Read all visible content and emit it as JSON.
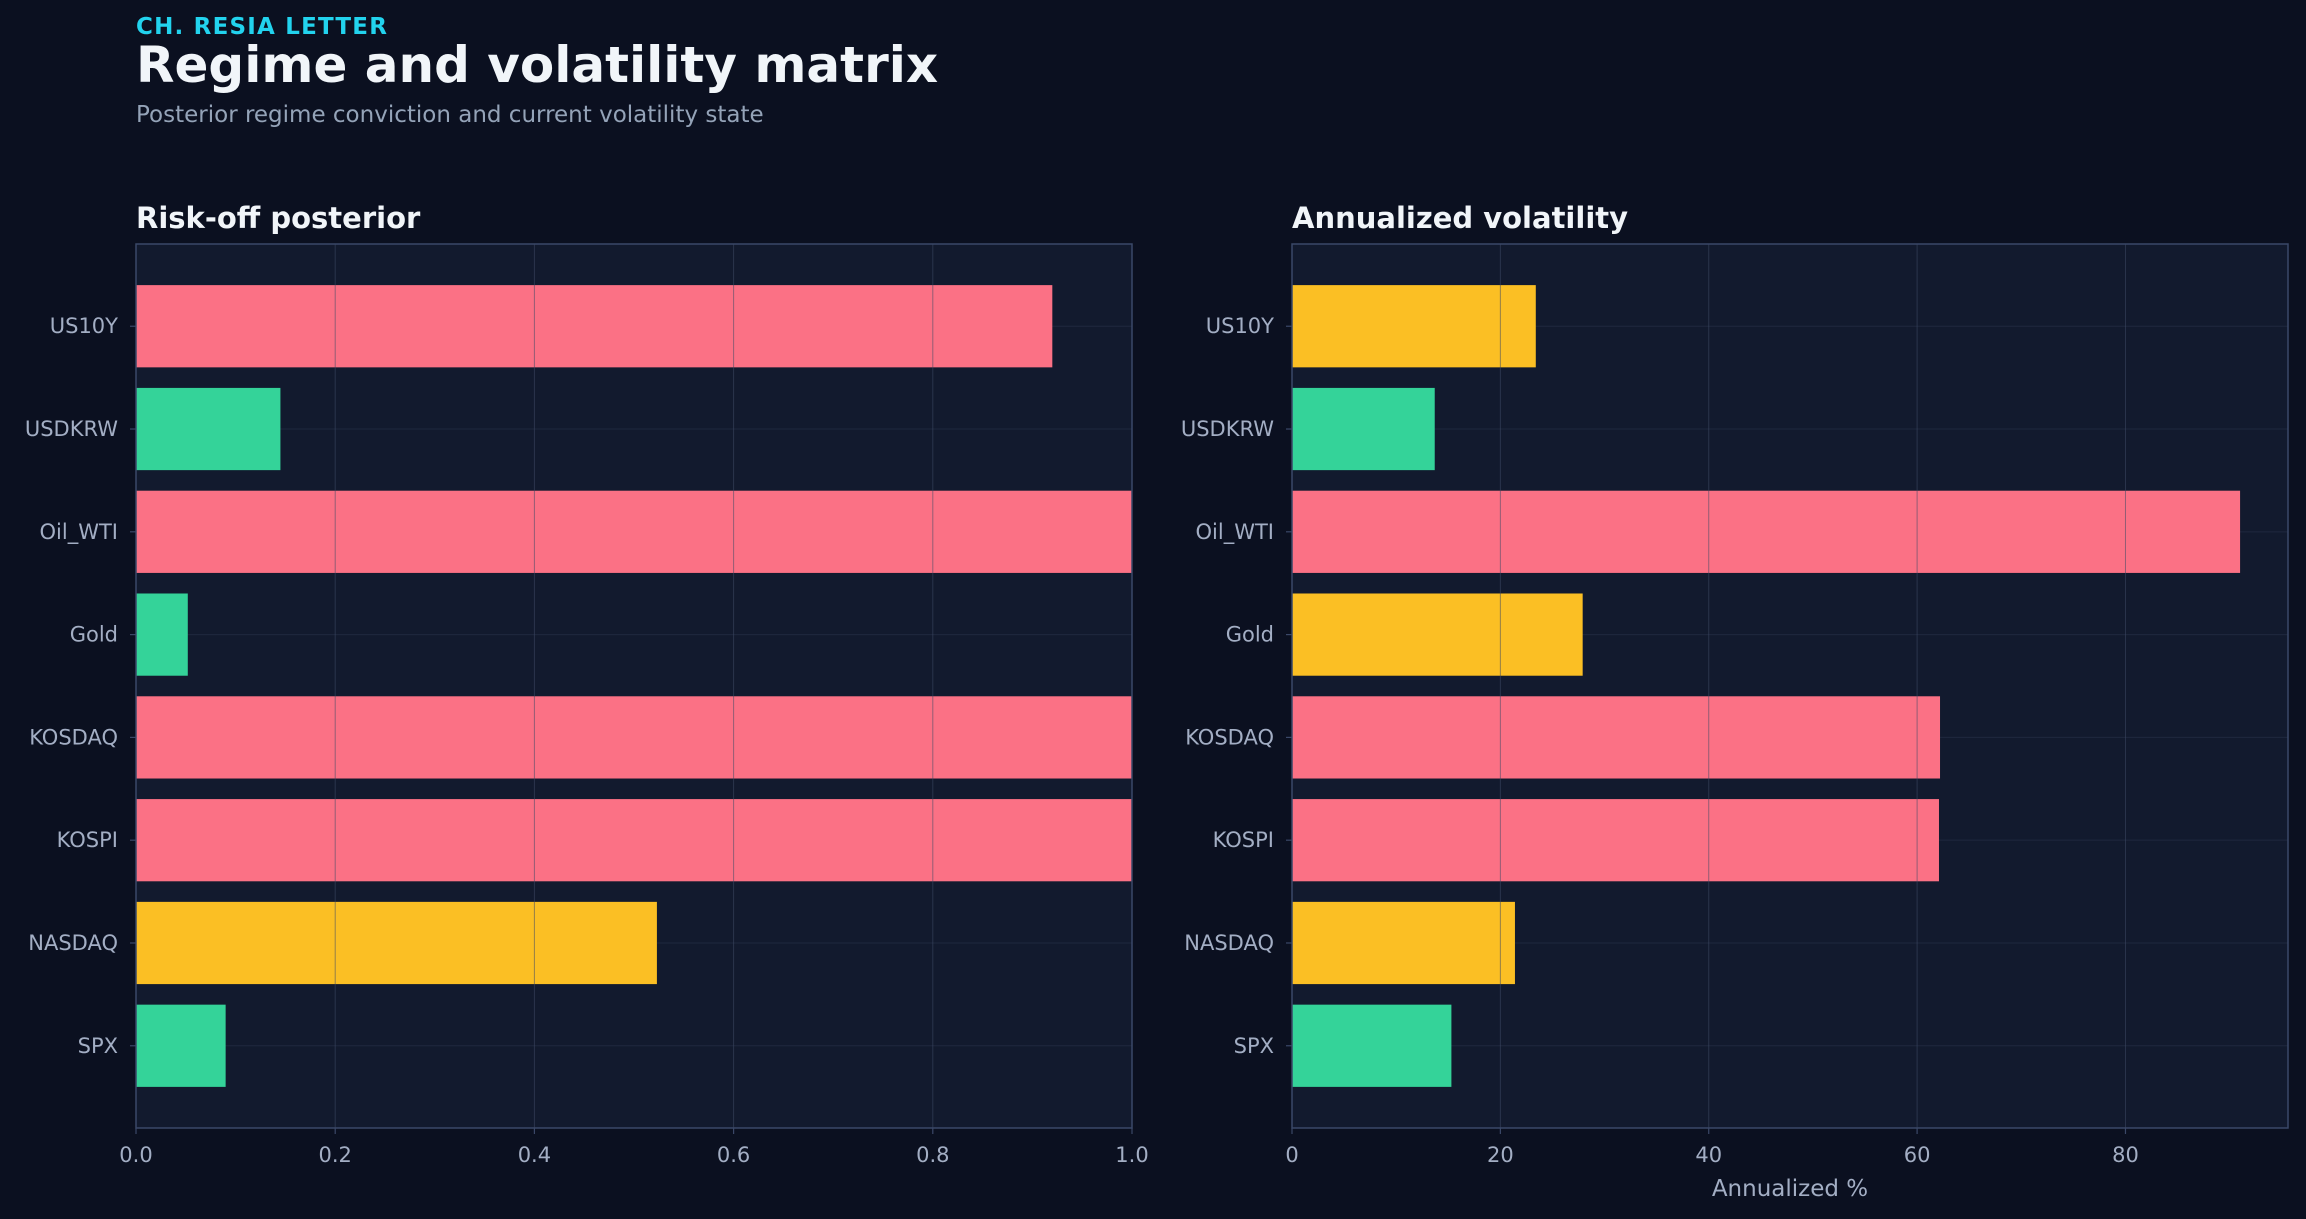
{
  "header": {
    "eyebrow": "CH. RESIA LETTER",
    "title": "Regime and volatility matrix",
    "subtitle": "Posterior regime conviction and current volatility state"
  },
  "colors": {
    "background": "#0b1020",
    "panel": "#121a2e",
    "panel_border": "#3b4868",
    "grid": "#2a344c",
    "text_primary": "#f1f5f9",
    "text_secondary": "#a3aec4",
    "accent": "#22d3ee",
    "risk_high": "#fb7185",
    "risk_mid": "#fbbf24",
    "risk_low": "#34d399"
  },
  "chart_data": [
    {
      "type": "bar",
      "orientation": "horizontal",
      "title": "Risk-off posterior",
      "xlabel": "",
      "ylabel": "",
      "categories": [
        "US10Y",
        "USDKRW",
        "Oil_WTI",
        "Gold",
        "KOSDAQ",
        "KOSPI",
        "NASDAQ",
        "SPX"
      ],
      "values": [
        0.92,
        0.145,
        1.0,
        0.052,
        1.0,
        1.0,
        0.523,
        0.09
      ],
      "bar_colors": [
        "#fb7185",
        "#34d399",
        "#fb7185",
        "#34d399",
        "#fb7185",
        "#fb7185",
        "#fbbf24",
        "#34d399"
      ],
      "xlim": [
        0,
        1.0
      ],
      "xticks": [
        0.0,
        0.2,
        0.4,
        0.6,
        0.8,
        1.0
      ],
      "xtick_labels": [
        "0.0",
        "0.2",
        "0.4",
        "0.6",
        "0.8",
        "1.0"
      ],
      "grid": true,
      "legend": "none"
    },
    {
      "type": "bar",
      "orientation": "horizontal",
      "title": "Annualized volatility",
      "xlabel": "Annualized %",
      "ylabel": "",
      "categories": [
        "US10Y",
        "USDKRW",
        "Oil_WTI",
        "Gold",
        "KOSDAQ",
        "KOSPI",
        "NASDAQ",
        "SPX"
      ],
      "values": [
        23.4,
        13.7,
        91.0,
        27.9,
        62.2,
        62.1,
        21.4,
        15.3
      ],
      "bar_colors": [
        "#fbbf24",
        "#34d399",
        "#fb7185",
        "#fbbf24",
        "#fb7185",
        "#fb7185",
        "#fbbf24",
        "#34d399"
      ],
      "xlim": [
        0,
        95.6
      ],
      "xticks": [
        0,
        20,
        40,
        60,
        80
      ],
      "xtick_labels": [
        "0",
        "20",
        "40",
        "60",
        "80"
      ],
      "grid": true,
      "legend": "none"
    }
  ]
}
